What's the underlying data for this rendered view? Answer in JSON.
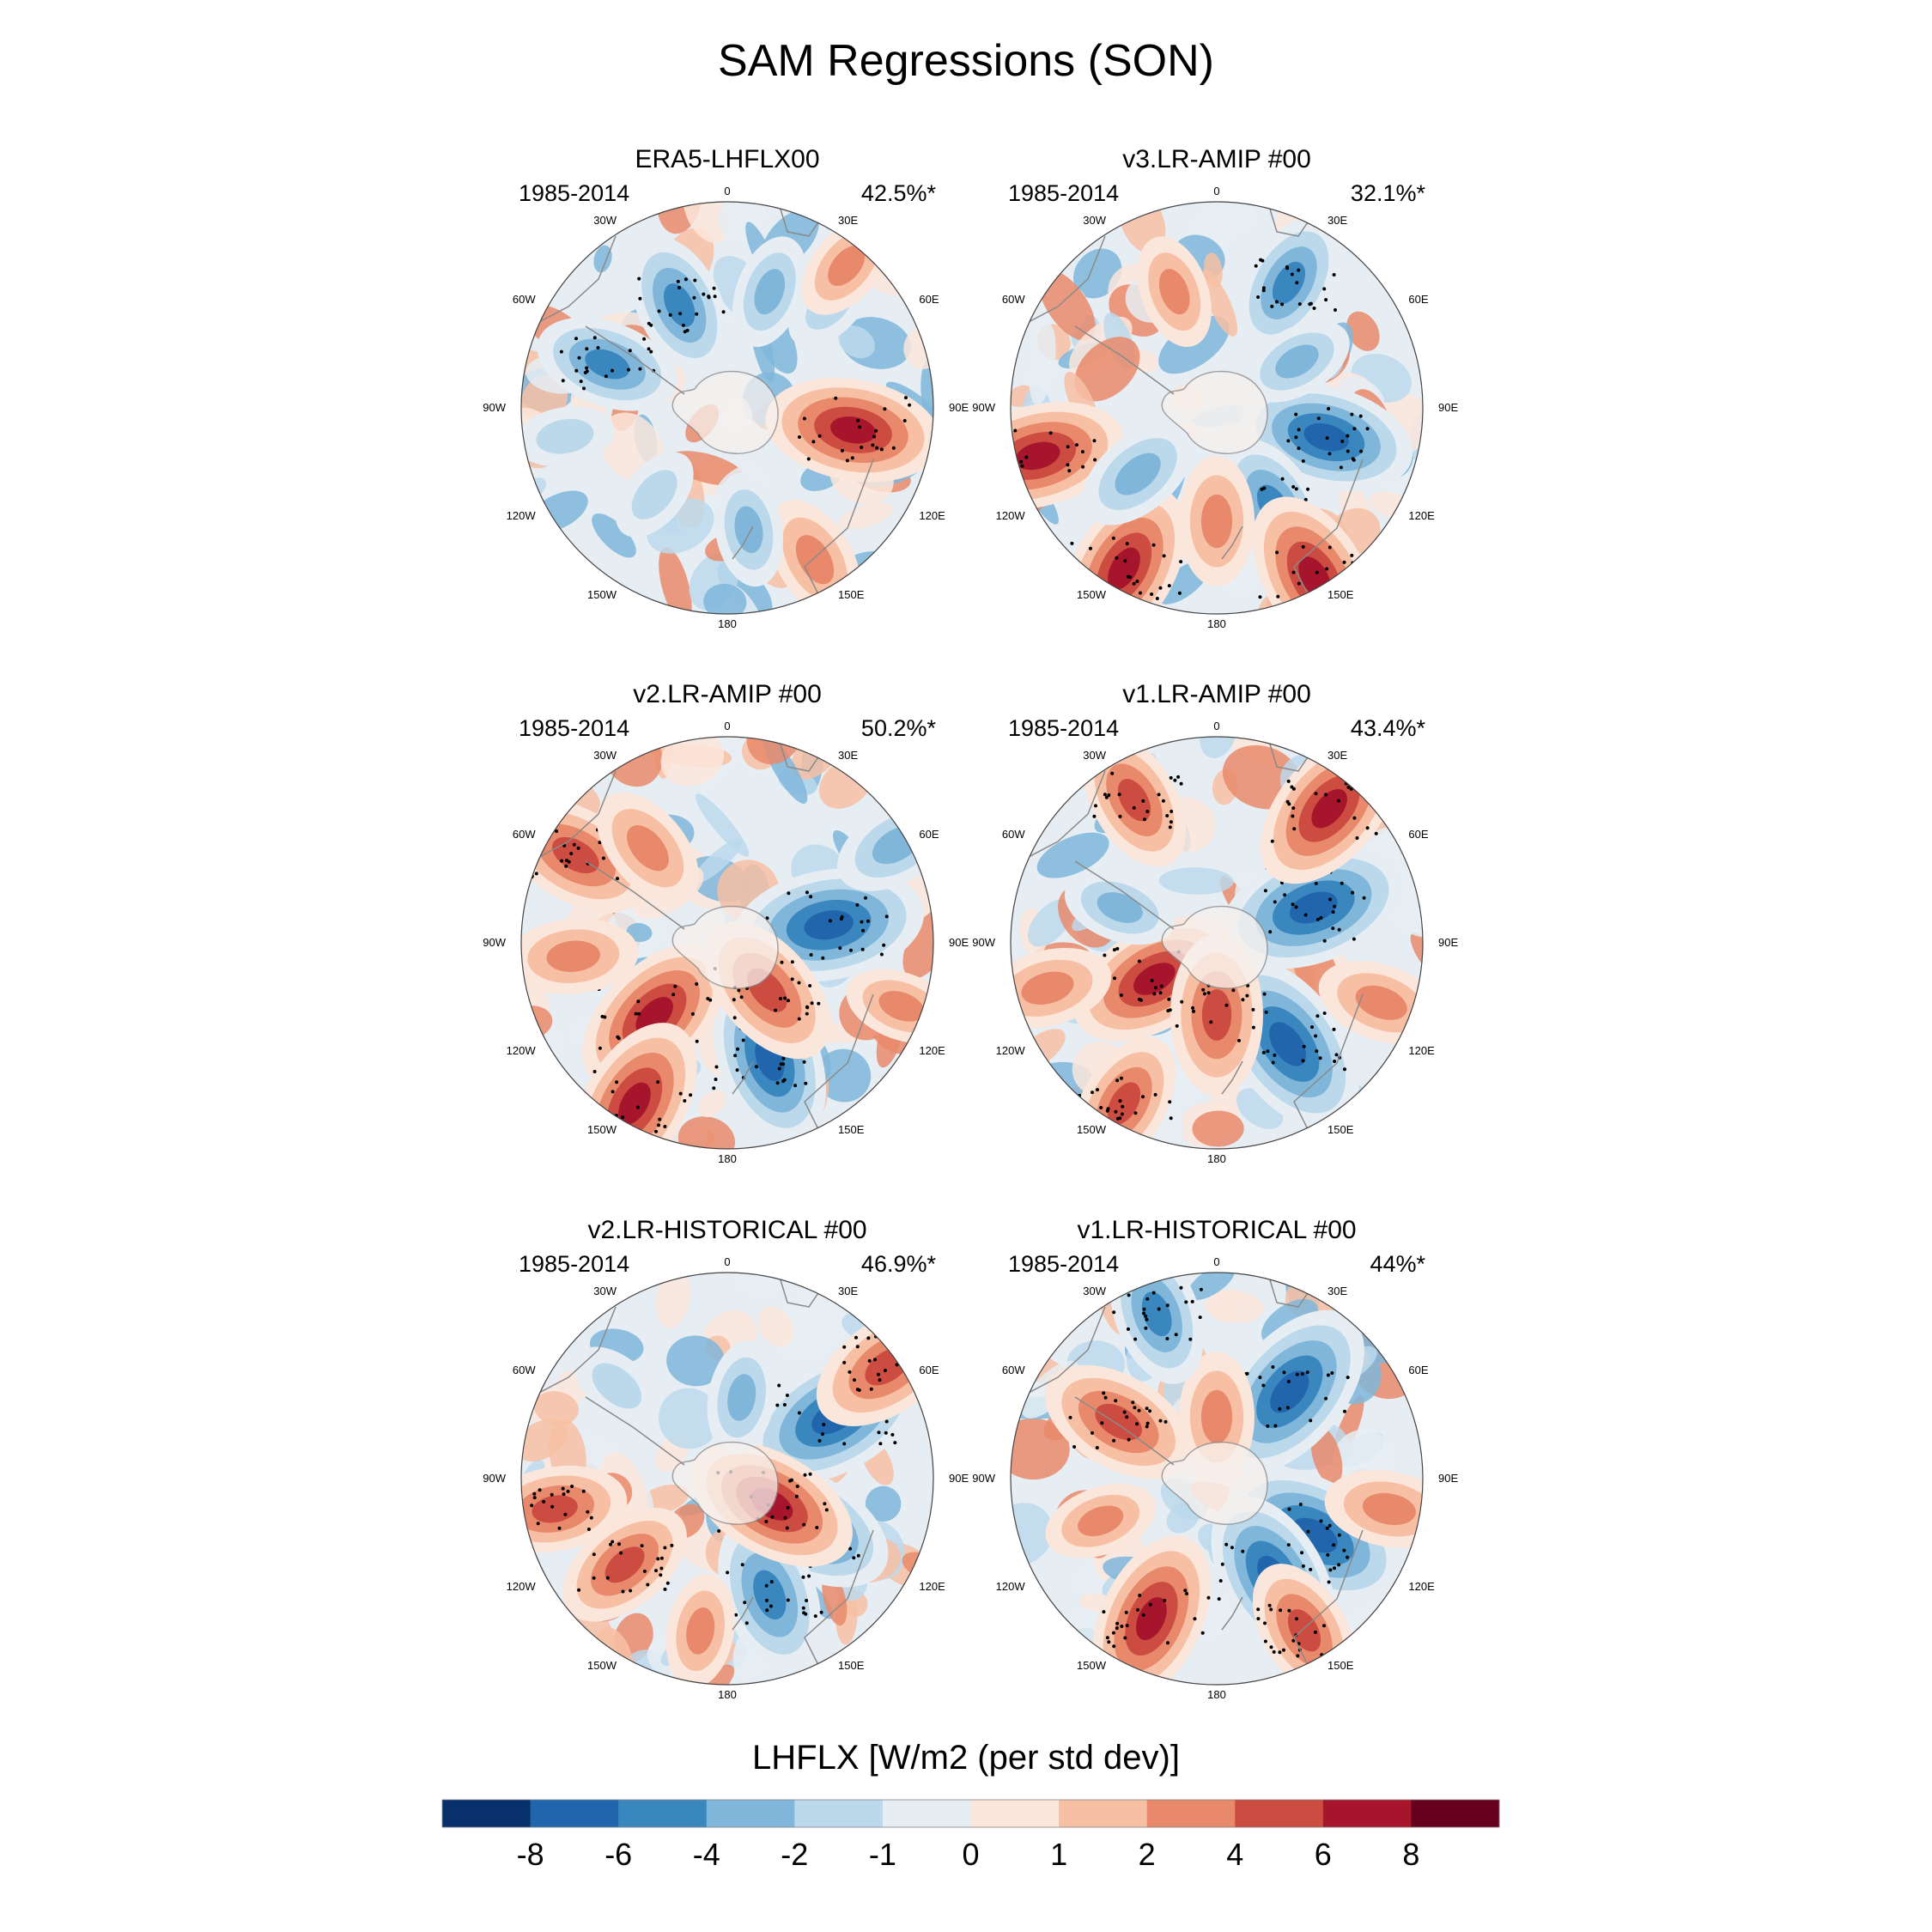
{
  "figure": {
    "title": "SAM Regressions (SON)"
  },
  "chart_data": {
    "type": "heatmap",
    "title": "SAM Regressions (SON)",
    "projection": "south-polar-stereographic",
    "variable": "LHFLX",
    "colorbar_label": "LHFLX [W/m2 (per std dev)]",
    "colorbar_ticks": [
      "-8",
      "-6",
      "-4",
      "-2",
      "-1",
      "0",
      "1",
      "2",
      "4",
      "6",
      "8"
    ],
    "colorbar_colors": [
      "#08306b",
      "#2166ac",
      "#3a87c0",
      "#7fb6da",
      "#bcd9ec",
      "#e6edf3",
      "#fbe6dc",
      "#f7c0a4",
      "#e9896b",
      "#cc4c41",
      "#a7152c",
      "#67001f"
    ],
    "longitude_labels": [
      "0",
      "30E",
      "60E",
      "90E",
      "120E",
      "150E",
      "180",
      "150W",
      "120W",
      "90W",
      "60W",
      "30W"
    ],
    "panels": [
      {
        "title": "ERA5-LHFLX00",
        "period": "1985-2014",
        "variance_explained": "42.5%*"
      },
      {
        "title": "v3.LR-AMIP  #00",
        "period": "1985-2014",
        "variance_explained": "32.1%*"
      },
      {
        "title": "v2.LR-AMIP  #00",
        "period": "1985-2014",
        "variance_explained": "50.2%*"
      },
      {
        "title": "v1.LR-AMIP  #00",
        "period": "1985-2014",
        "variance_explained": "43.4%*"
      },
      {
        "title": "v2.LR-HISTORICAL  #00",
        "period": "1985-2014",
        "variance_explained": "46.9%*"
      },
      {
        "title": "v1.LR-HISTORICAL  #00",
        "period": "1985-2014",
        "variance_explained": "44%*"
      }
    ],
    "field_anomalies": [
      [
        {
          "lon": 100,
          "colat": 0.62,
          "v": 7
        },
        {
          "lon": -70,
          "colat": 0.62,
          "v": -5
        },
        {
          "lon": -25,
          "colat": 0.55,
          "v": -5
        },
        {
          "lon": 20,
          "colat": 0.6,
          "v": -3
        },
        {
          "lon": 45,
          "colat": 0.7,
          "v": -2
        },
        {
          "lon": 150,
          "colat": 0.85,
          "v": 4
        },
        {
          "lon": 170,
          "colat": 0.6,
          "v": -3
        },
        {
          "lon": -140,
          "colat": 0.55,
          "v": -2
        },
        {
          "lon": 40,
          "colat": 0.9,
          "v": 3
        },
        {
          "lon": -100,
          "colat": 0.8,
          "v": -2
        }
      ],
      [
        {
          "lon": -105,
          "colat": 0.9,
          "v": 7
        },
        {
          "lon": -150,
          "colat": 0.9,
          "v": 7
        },
        {
          "lon": 105,
          "colat": 0.55,
          "v": -7
        },
        {
          "lon": 150,
          "colat": 0.55,
          "v": -5
        },
        {
          "lon": 180,
          "colat": 0.55,
          "v": 4
        },
        {
          "lon": -130,
          "colat": 0.5,
          "v": -4
        },
        {
          "lon": 150,
          "colat": 0.95,
          "v": 7
        },
        {
          "lon": 30,
          "colat": 0.7,
          "v": -5
        },
        {
          "lon": -20,
          "colat": 0.6,
          "v": 3
        },
        {
          "lon": 60,
          "colat": 0.45,
          "v": -3
        }
      ],
      [
        {
          "lon": 80,
          "colat": 0.5,
          "v": -8
        },
        {
          "lon": 160,
          "colat": 0.6,
          "v": -7
        },
        {
          "lon": -135,
          "colat": 0.5,
          "v": 7
        },
        {
          "lon": 140,
          "colat": 0.3,
          "v": 6
        },
        {
          "lon": -150,
          "colat": 0.9,
          "v": 7
        },
        {
          "lon": -60,
          "colat": 0.85,
          "v": 6
        },
        {
          "lon": -40,
          "colat": 0.6,
          "v": 4
        },
        {
          "lon": 60,
          "colat": 0.95,
          "v": -4
        },
        {
          "lon": 110,
          "colat": 0.9,
          "v": 3
        },
        {
          "lon": -95,
          "colat": 0.75,
          "v": 4
        }
      ],
      [
        {
          "lon": 70,
          "colat": 0.5,
          "v": -8
        },
        {
          "lon": 145,
          "colat": 0.6,
          "v": -8
        },
        {
          "lon": -120,
          "colat": 0.35,
          "v": 7
        },
        {
          "lon": 40,
          "colat": 0.85,
          "v": 7
        },
        {
          "lon": -150,
          "colat": 0.9,
          "v": 5
        },
        {
          "lon": -105,
          "colat": 0.85,
          "v": 4
        },
        {
          "lon": 180,
          "colat": 0.35,
          "v": 6
        },
        {
          "lon": -30,
          "colat": 0.8,
          "v": 5
        },
        {
          "lon": 110,
          "colat": 0.85,
          "v": 4
        },
        {
          "lon": -70,
          "colat": 0.5,
          "v": -3
        }
      ],
      [
        {
          "lon": 60,
          "colat": 0.6,
          "v": -8
        },
        {
          "lon": 120,
          "colat": 0.45,
          "v": -7
        },
        {
          "lon": 160,
          "colat": 0.6,
          "v": -6
        },
        {
          "lon": 120,
          "colat": 0.25,
          "v": 7
        },
        {
          "lon": -130,
          "colat": 0.65,
          "v": 5
        },
        {
          "lon": -100,
          "colat": 0.85,
          "v": 5
        },
        {
          "lon": 55,
          "colat": 0.95,
          "v": 6
        },
        {
          "lon": -50,
          "colat": 0.7,
          "v": -2
        },
        {
          "lon": 10,
          "colat": 0.4,
          "v": -3
        },
        {
          "lon": -170,
          "colat": 0.75,
          "v": 3
        }
      ],
      [
        {
          "lon": 40,
          "colat": 0.55,
          "v": -8
        },
        {
          "lon": 120,
          "colat": 0.55,
          "v": -8
        },
        {
          "lon": 150,
          "colat": 0.55,
          "v": -7
        },
        {
          "lon": -155,
          "colat": 0.75,
          "v": 7
        },
        {
          "lon": -60,
          "colat": 0.55,
          "v": 6
        },
        {
          "lon": 0,
          "colat": 0.3,
          "v": 4
        },
        {
          "lon": 150,
          "colat": 0.85,
          "v": 5
        },
        {
          "lon": 100,
          "colat": 0.85,
          "v": 4
        },
        {
          "lon": -20,
          "colat": 0.85,
          "v": -5
        },
        {
          "lon": -110,
          "colat": 0.6,
          "v": 3
        }
      ]
    ]
  }
}
